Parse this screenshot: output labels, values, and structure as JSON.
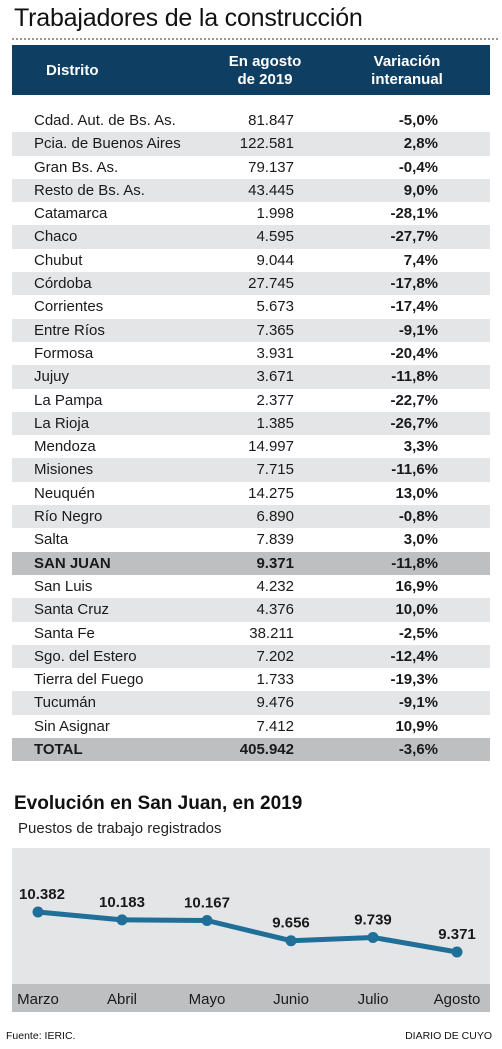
{
  "title": "Trabajadores de la construcción",
  "table": {
    "headers": {
      "distrito": "Distrito",
      "agosto_line1": "En agosto",
      "agosto_line2": "de 2019",
      "var_line1": "Variación",
      "var_line2": "interanual"
    },
    "rows": [
      {
        "distrito": "Cdad. Aut. de Bs. As.",
        "agosto": "81.847",
        "variacion": "-5,0%"
      },
      {
        "distrito": "Pcia. de Buenos Aires",
        "agosto": "122.581",
        "variacion": "2,8%"
      },
      {
        "distrito": "Gran Bs. As.",
        "agosto": "79.137",
        "variacion": "-0,4%"
      },
      {
        "distrito": "Resto de Bs. As.",
        "agosto": "43.445",
        "variacion": "9,0%"
      },
      {
        "distrito": "Catamarca",
        "agosto": "1.998",
        "variacion": "-28,1%"
      },
      {
        "distrito": "Chaco",
        "agosto": "4.595",
        "variacion": "-27,7%"
      },
      {
        "distrito": "Chubut",
        "agosto": "9.044",
        "variacion": "7,4%"
      },
      {
        "distrito": "Córdoba",
        "agosto": "27.745",
        "variacion": "-17,8%"
      },
      {
        "distrito": "Corrientes",
        "agosto": "5.673",
        "variacion": "-17,4%"
      },
      {
        "distrito": "Entre Ríos",
        "agosto": "7.365",
        "variacion": "-9,1%"
      },
      {
        "distrito": "Formosa",
        "agosto": "3.931",
        "variacion": "-20,4%"
      },
      {
        "distrito": "Jujuy",
        "agosto": "3.671",
        "variacion": "-11,8%"
      },
      {
        "distrito": "La Pampa",
        "agosto": "2.377",
        "variacion": "-22,7%"
      },
      {
        "distrito": "La Rioja",
        "agosto": "1.385",
        "variacion": "-26,7%"
      },
      {
        "distrito": "Mendoza",
        "agosto": "14.997",
        "variacion": "3,3%"
      },
      {
        "distrito": "Misiones",
        "agosto": "7.715",
        "variacion": "-11,6%"
      },
      {
        "distrito": "Neuquén",
        "agosto": "14.275",
        "variacion": "13,0%"
      },
      {
        "distrito": "Río Negro",
        "agosto": "6.890",
        "variacion": "-0,8%"
      },
      {
        "distrito": "Salta",
        "agosto": "7.839",
        "variacion": "3,0%"
      },
      {
        "distrito": "SAN JUAN",
        "agosto": "9.371",
        "variacion": "-11,8%",
        "highlight": true
      },
      {
        "distrito": "San Luis",
        "agosto": "4.232",
        "variacion": "16,9%"
      },
      {
        "distrito": "Santa Cruz",
        "agosto": "4.376",
        "variacion": "10,0%"
      },
      {
        "distrito": "Santa Fe",
        "agosto": "38.211",
        "variacion": "-2,5%"
      },
      {
        "distrito": "Sgo. del Estero",
        "agosto": "7.202",
        "variacion": "-12,4%"
      },
      {
        "distrito": "Tierra del Fuego",
        "agosto": "1.733",
        "variacion": "-19,3%"
      },
      {
        "distrito": "Tucumán",
        "agosto": "9.476",
        "variacion": "-9,1%"
      },
      {
        "distrito": "Sin Asignar",
        "agosto": "7.412",
        "variacion": "10,9%"
      }
    ],
    "total": {
      "distrito": "TOTAL",
      "agosto": "405.942",
      "variacion": "-3,6%"
    }
  },
  "chart_section": {
    "title": "Evolución en San Juan, en 2019",
    "caption": "Puestos de trabajo registrados"
  },
  "chart_data": {
    "type": "line",
    "title": "Evolución en San Juan, en 2019",
    "ylabel": "Puestos de trabajo registrados",
    "categories": [
      "Marzo",
      "Abril",
      "Mayo",
      "Junio",
      "Julio",
      "Agosto"
    ],
    "values": [
      10382,
      10183,
      10167,
      9656,
      9739,
      9371
    ],
    "value_labels": [
      "10.382",
      "10.183",
      "10.167",
      "9.656",
      "9.739",
      "9.371"
    ],
    "line_color": "#1f6f98"
  },
  "footer": {
    "source": "Fuente: IERIC.",
    "credit": "DIARIO DE CUYO"
  },
  "colors": {
    "header_bg": "#0f3e63",
    "row_alt": "#e4e5e6",
    "row_highlight": "#bdbfc1",
    "line": "#1f6f98"
  }
}
